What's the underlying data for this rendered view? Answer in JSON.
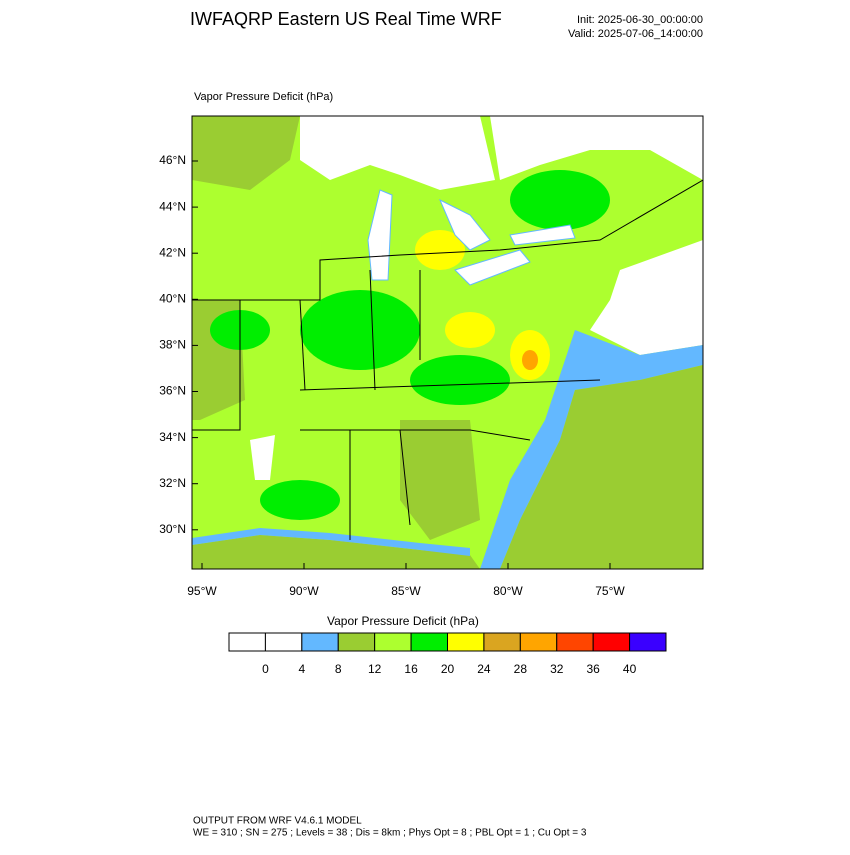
{
  "header": {
    "title": "IWFAQRP Eastern US Real Time WRF",
    "init": "Init: 2025-06-30_00:00:00",
    "valid": "Valid: 2025-07-06_14:00:00"
  },
  "map": {
    "label": "Vapor Pressure Deficit   (hPa)",
    "lat_labels": [
      "46°N",
      "44°N",
      "42°N",
      "40°N",
      "38°N",
      "36°N",
      "34°N",
      "32°N",
      "30°N"
    ],
    "lon_labels": [
      "95°W",
      "90°W",
      "85°W",
      "80°W",
      "75°W"
    ]
  },
  "colorbar": {
    "title": "Vapor Pressure Deficit  (hPa)",
    "colors": [
      "#ffffff",
      "#ffffff",
      "#63b8ff",
      "#9acd32",
      "#adff2f",
      "#00ee00",
      "#ffff00",
      "#daa520",
      "#ffa500",
      "#ff4500",
      "#ff0000",
      "#3a00ff"
    ],
    "ticks": [
      0,
      4,
      8,
      12,
      16,
      20,
      24,
      28,
      32,
      36,
      40
    ]
  },
  "footer": {
    "line1": "OUTPUT FROM WRF V4.6.1 MODEL",
    "line2": "WE = 310 ; SN = 275 ; Levels = 38 ; Dis = 8km ; Phys Opt = 8 ; PBL Opt = 1 ; Cu Opt = 3"
  }
}
